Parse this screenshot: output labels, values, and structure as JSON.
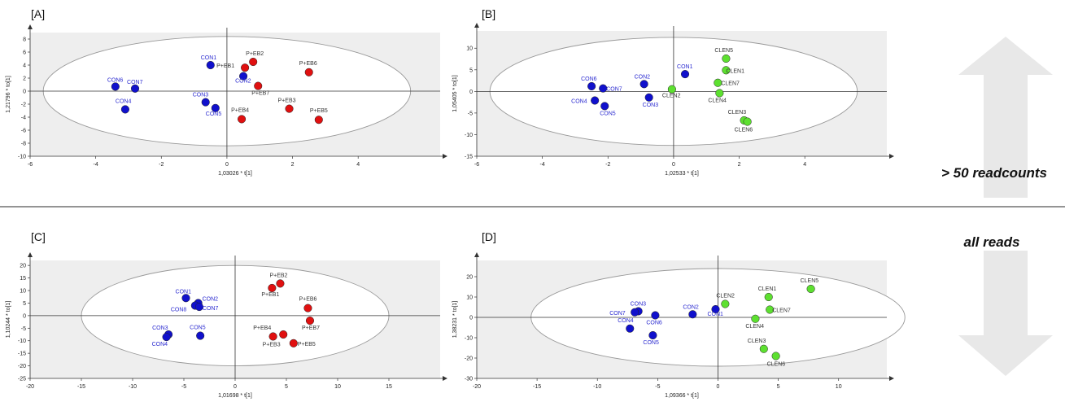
{
  "side": {
    "top_label": "> 50 readcounts",
    "bottom_label": "all reads",
    "arrow_color": "#e8e8e8",
    "divider_color": "#555555"
  },
  "colors": {
    "CON": "#1010cc",
    "EB": "#e01010",
    "CLEN": "#5de030",
    "CON_label": "#2a2ad0",
    "other_label": "#333333",
    "plot_bg": "#eeeeee"
  },
  "chart_data": [
    {
      "type": "scatter",
      "panel": "[A]",
      "xlabel": "1,03026 * t[1]",
      "ylabel": "1,21796 * to[1]",
      "xlim": [
        -6,
        6.5
      ],
      "ylim": [
        -10,
        9
      ],
      "xticks": [
        -6,
        -4,
        -2,
        0,
        2,
        4
      ],
      "yticks": [
        -10,
        -8,
        -6,
        -4,
        -2,
        0,
        2,
        4,
        6,
        8
      ],
      "ellipse": {
        "rx": 5.6,
        "ry": 8.4
      },
      "points": [
        {
          "label": "CON6",
          "group": "CON",
          "x": -3.4,
          "y": 0.7
        },
        {
          "label": "CON7",
          "group": "CON",
          "x": -2.8,
          "y": 0.4
        },
        {
          "label": "CON4",
          "group": "CON",
          "x": -3.1,
          "y": -2.8
        },
        {
          "label": "CON1",
          "group": "CON",
          "x": -0.5,
          "y": 4.0
        },
        {
          "label": "CON2",
          "group": "CON",
          "x": 0.5,
          "y": 2.3
        },
        {
          "label": "CON3",
          "group": "CON",
          "x": -0.65,
          "y": -1.7
        },
        {
          "label": "CON5",
          "group": "CON",
          "x": -0.35,
          "y": -2.6
        },
        {
          "label": "P+EB1",
          "group": "EB",
          "x": 0.55,
          "y": 3.6
        },
        {
          "label": "P+EB2",
          "group": "EB",
          "x": 0.8,
          "y": 4.5
        },
        {
          "label": "P+EB7",
          "group": "EB",
          "x": 0.95,
          "y": 0.8
        },
        {
          "label": "P+EB6",
          "group": "EB",
          "x": 2.5,
          "y": 2.9
        },
        {
          "label": "P+EB3",
          "group": "EB",
          "x": 1.9,
          "y": -2.7
        },
        {
          "label": "P+EB5",
          "group": "EB",
          "x": 2.8,
          "y": -4.4
        },
        {
          "label": "P+EB4",
          "group": "EB",
          "x": 0.45,
          "y": -4.3
        }
      ]
    },
    {
      "type": "scatter",
      "panel": "[B]",
      "xlabel": "1,02533 * t[1]",
      "ylabel": "1,05405 * to[1]",
      "xlim": [
        -6,
        6.5
      ],
      "ylim": [
        -15,
        14
      ],
      "xticks": [
        -6,
        -4,
        -2,
        0,
        2,
        4
      ],
      "yticks": [
        -15,
        -10,
        -5,
        0,
        5,
        10
      ],
      "ellipse": {
        "rx": 5.6,
        "ry": 12.5
      },
      "points": [
        {
          "label": "CON6",
          "group": "CON",
          "x": -2.5,
          "y": 1.2
        },
        {
          "label": "CON7",
          "group": "CON",
          "x": -2.15,
          "y": 0.7
        },
        {
          "label": "CON4",
          "group": "CON",
          "x": -2.4,
          "y": -2.1
        },
        {
          "label": "CON5",
          "group": "CON",
          "x": -2.1,
          "y": -3.4
        },
        {
          "label": "CON2",
          "group": "CON",
          "x": -0.9,
          "y": 1.7
        },
        {
          "label": "CON3",
          "group": "CON",
          "x": -0.75,
          "y": -1.4
        },
        {
          "label": "CON1",
          "group": "CON",
          "x": 0.35,
          "y": 4.0
        },
        {
          "label": "CLEN2",
          "group": "CLEN",
          "x": -0.05,
          "y": 0.5
        },
        {
          "label": "CLEN5",
          "group": "CLEN",
          "x": 1.6,
          "y": 7.6
        },
        {
          "label": "CLEN1",
          "group": "CLEN",
          "x": 1.6,
          "y": 4.9
        },
        {
          "label": "CLEN7",
          "group": "CLEN",
          "x": 1.35,
          "y": 2.0
        },
        {
          "label": "CLEN4",
          "group": "CLEN",
          "x": 1.4,
          "y": -0.4
        },
        {
          "label": "CLEN3",
          "group": "CLEN",
          "x": 2.15,
          "y": -6.7
        },
        {
          "label": "CLEN6",
          "group": "CLEN",
          "x": 2.25,
          "y": -7.0
        }
      ]
    },
    {
      "type": "scatter",
      "panel": "[C]",
      "xlabel": "1,01698 * t[1]",
      "ylabel": "1,10244 * to[1]",
      "xlim": [
        -20,
        20
      ],
      "ylim": [
        -25,
        22
      ],
      "xticks": [
        -20,
        -15,
        -10,
        -5,
        0,
        5,
        10,
        15
      ],
      "yticks": [
        -25,
        -20,
        -15,
        -10,
        -5,
        0,
        5,
        10,
        15,
        20
      ],
      "ellipse": {
        "rx": 15,
        "ry": 20
      },
      "points": [
        {
          "label": "CON1",
          "group": "CON",
          "x": -4.8,
          "y": 7.0
        },
        {
          "label": "CON2",
          "group": "CON",
          "x": -3.6,
          "y": 5.0
        },
        {
          "label": "CON8",
          "group": "CON",
          "x": -3.9,
          "y": 4.0
        },
        {
          "label": "CON7",
          "group": "CON",
          "x": -3.5,
          "y": 3.5
        },
        {
          "label": "CON3",
          "group": "CON",
          "x": -6.5,
          "y": -7.5
        },
        {
          "label": "CON4",
          "group": "CON",
          "x": -6.7,
          "y": -8.5
        },
        {
          "label": "CON5",
          "group": "CON",
          "x": -3.4,
          "y": -8.0
        },
        {
          "label": "P+EB1",
          "group": "EB",
          "x": 3.6,
          "y": 11.0
        },
        {
          "label": "P+EB2",
          "group": "EB",
          "x": 4.4,
          "y": 12.8
        },
        {
          "label": "P+EB6",
          "group": "EB",
          "x": 7.1,
          "y": 3.0
        },
        {
          "label": "P+EB7",
          "group": "EB",
          "x": 7.3,
          "y": -2.0
        },
        {
          "label": "P+EB4",
          "group": "EB",
          "x": 4.7,
          "y": -7.5
        },
        {
          "label": "P+EB3",
          "group": "EB",
          "x": 3.7,
          "y": -8.3
        },
        {
          "label": "P+EB5",
          "group": "EB",
          "x": 5.7,
          "y": -11.0
        }
      ]
    },
    {
      "type": "scatter",
      "panel": "[D]",
      "xlabel": "1,09366 * t[1]",
      "ylabel": "1,38231 * to[1]",
      "xlim": [
        -20,
        14
      ],
      "ylim": [
        -30,
        28
      ],
      "xticks": [
        -20,
        -15,
        -10,
        -5,
        0,
        5,
        10
      ],
      "yticks": [
        -30,
        -20,
        -10,
        0,
        10,
        20
      ],
      "ellipse": {
        "rx": 15.5,
        "ry": 24
      },
      "points": [
        {
          "label": "CON3",
          "group": "CON",
          "x": -6.6,
          "y": 3.0
        },
        {
          "label": "CON7",
          "group": "CON",
          "x": -6.9,
          "y": 2.5
        },
        {
          "label": "CON6",
          "group": "CON",
          "x": -5.2,
          "y": 1.0
        },
        {
          "label": "CON4",
          "group": "CON",
          "x": -7.3,
          "y": -5.5
        },
        {
          "label": "CON5",
          "group": "CON",
          "x": -5.4,
          "y": -8.8
        },
        {
          "label": "CON2",
          "group": "CON",
          "x": -2.1,
          "y": 1.5
        },
        {
          "label": "CON1",
          "group": "CON",
          "x": -0.2,
          "y": 4.0
        },
        {
          "label": "CLEN2",
          "group": "CLEN",
          "x": 0.6,
          "y": 6.6
        },
        {
          "label": "CLEN1",
          "group": "CLEN",
          "x": 4.2,
          "y": 10.0
        },
        {
          "label": "CLEN7",
          "group": "CLEN",
          "x": 4.3,
          "y": 3.8
        },
        {
          "label": "CLEN5",
          "group": "CLEN",
          "x": 7.7,
          "y": 14.0
        },
        {
          "label": "CLEN4",
          "group": "CLEN",
          "x": 3.1,
          "y": -0.7
        },
        {
          "label": "CLEN3",
          "group": "CLEN",
          "x": 3.8,
          "y": -15.5
        },
        {
          "label": "CLEN6",
          "group": "CLEN",
          "x": 4.8,
          "y": -19.0
        }
      ]
    }
  ]
}
